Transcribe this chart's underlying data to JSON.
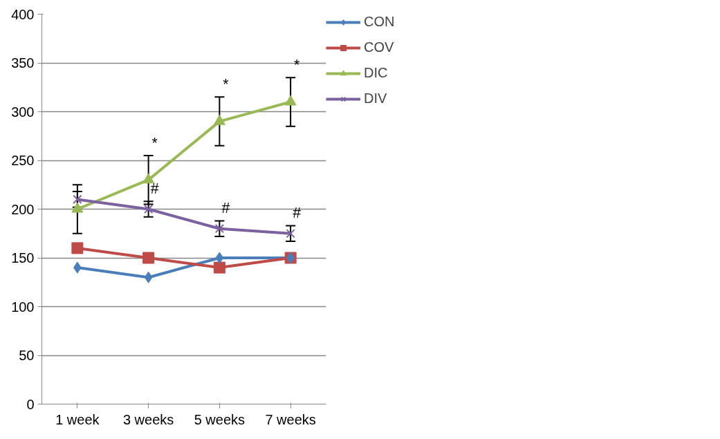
{
  "chart_data": {
    "type": "line",
    "categories": [
      "1 week",
      "3 weeks",
      "5 weeks",
      "7 weeks"
    ],
    "series": [
      {
        "name": "CON",
        "color": "#4a7ebb",
        "marker": "diamond",
        "values": [
          140,
          130,
          150,
          150
        ]
      },
      {
        "name": "COV",
        "color": "#be4b48",
        "marker": "square",
        "values": [
          160,
          150,
          140,
          150
        ]
      },
      {
        "name": "DIC",
        "color": "#98b954",
        "marker": "triangle",
        "values": [
          200,
          230,
          290,
          310
        ],
        "errors": [
          25,
          25,
          25,
          25
        ],
        "value_labels": [
          null,
          "*",
          "*",
          "*"
        ]
      },
      {
        "name": "DIV",
        "color": "#7d60a0",
        "marker": "cross",
        "values": [
          210,
          200,
          180,
          175
        ],
        "errors": [
          8,
          8,
          8,
          8
        ],
        "value_labels": [
          null,
          "#",
          "#",
          "#"
        ]
      }
    ],
    "ylim": [
      0,
      400
    ],
    "yticks": [
      0,
      50,
      100,
      150,
      200,
      250,
      300,
      350,
      400
    ],
    "grid": "y",
    "legend": "right"
  }
}
